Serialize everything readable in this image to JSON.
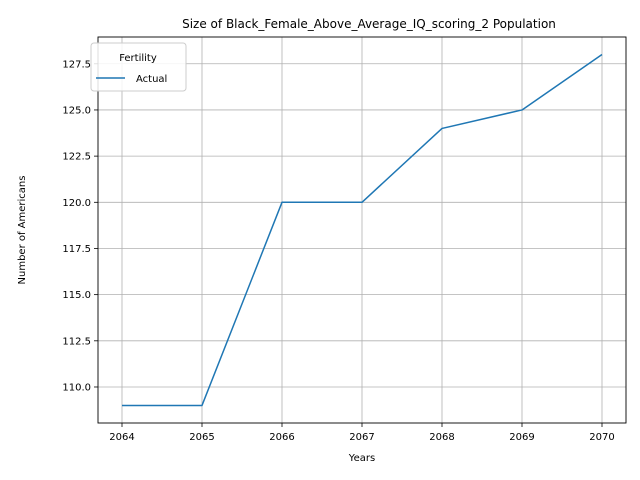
{
  "chart_data": {
    "type": "line",
    "title": "Size of Black_Female_Above_Average_IQ_scoring_2 Population",
    "xlabel": "Years",
    "ylabel": "Number of Americans",
    "x": [
      2064,
      2065,
      2066,
      2067,
      2068,
      2069,
      2070
    ],
    "xticks": [
      "2064",
      "2065",
      "2066",
      "2067",
      "2068",
      "2069",
      "2070"
    ],
    "yticks": [
      110.0,
      112.5,
      115.0,
      117.5,
      120.0,
      122.5,
      125.0,
      127.5
    ],
    "ytick_labels": [
      "110.0",
      "112.5",
      "115.0",
      "117.5",
      "120.0",
      "122.5",
      "125.0",
      "127.5"
    ],
    "xlim": [
      2063.7,
      2070.3
    ],
    "ylim": [
      108.05,
      128.95
    ],
    "grid": true,
    "legend": {
      "title": "Fertility",
      "position": "top-left"
    },
    "series": [
      {
        "name": "Actual",
        "color": "#1f77b4",
        "values": [
          109,
          109,
          120,
          120,
          124,
          125,
          128
        ]
      }
    ]
  }
}
